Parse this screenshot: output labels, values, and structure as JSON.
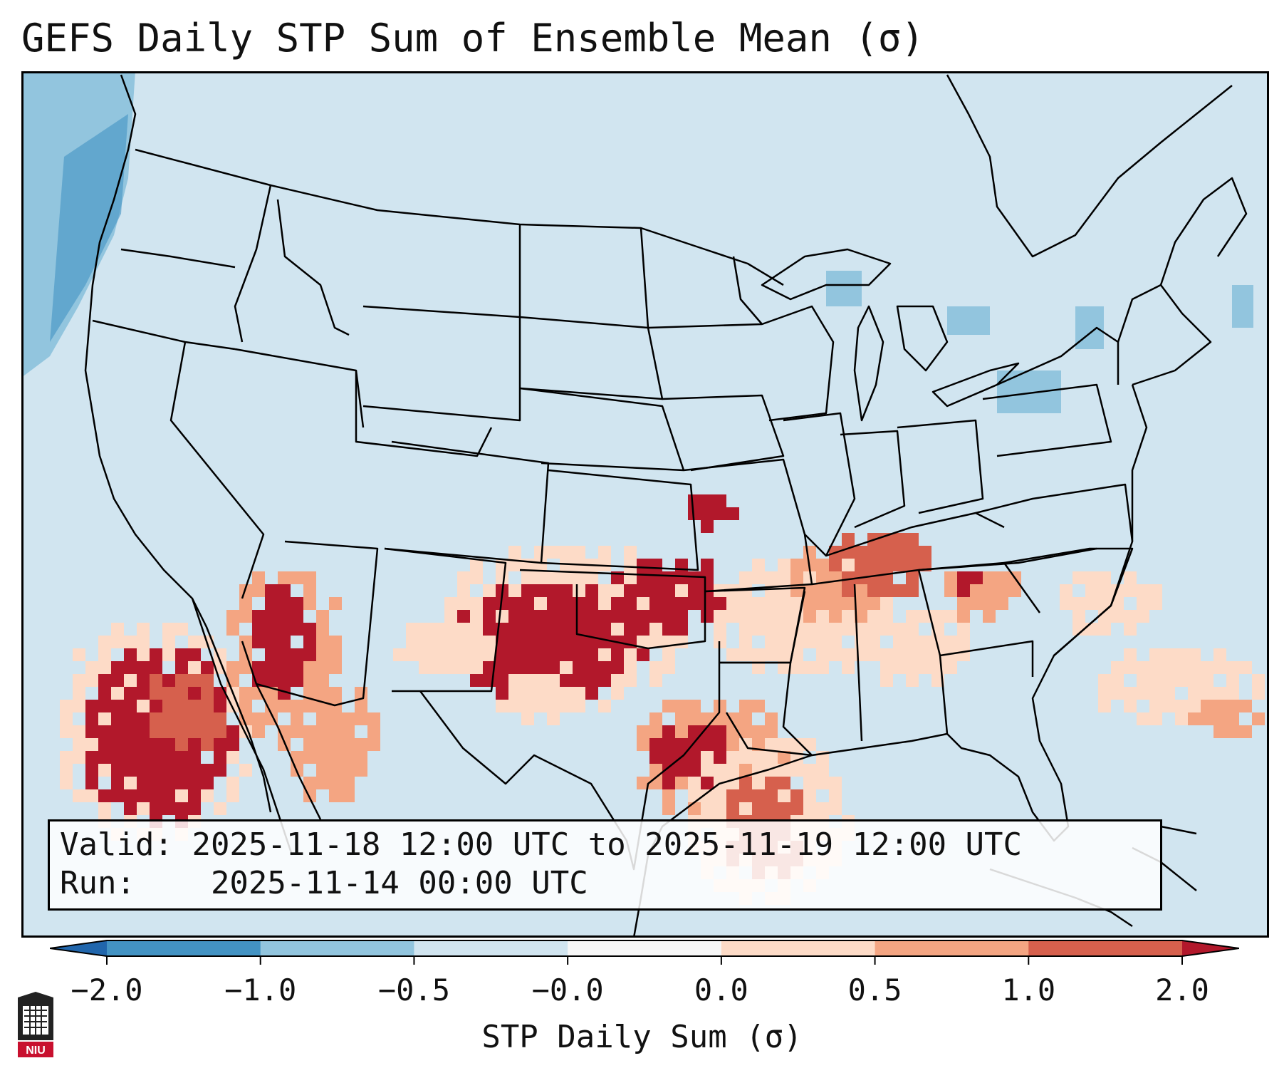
{
  "title": "GEFS Daily STP Sum of Ensemble Mean (σ)",
  "info": {
    "valid_label": "Valid:",
    "valid_value": "2025-11-18 12:00 UTC to 2025-11-19 12:00 UTC",
    "run_label": "Run:",
    "run_value": "2025-11-14 00:00 UTC"
  },
  "colorbar": {
    "label": "STP Daily Sum (σ)",
    "ticks": [
      "−2.0",
      "−1.0",
      "−0.5",
      "−0.0",
      "0.0",
      "0.5",
      "1.0",
      "2.0"
    ],
    "bins": [
      {
        "range": "< -2.0",
        "color": "#2166ac"
      },
      {
        "range": "-2.0 to -1.0",
        "color": "#4393c3"
      },
      {
        "range": "-1.0 to -0.5",
        "color": "#92c5de"
      },
      {
        "range": "-0.5 to -0.0",
        "color": "#d1e5f0"
      },
      {
        "range": "-0.0 to 0.0",
        "color": "#f7f7f7"
      },
      {
        "range": "0.0 to 0.5",
        "color": "#fddbc7"
      },
      {
        "range": "0.5 to 1.0",
        "color": "#f4a582"
      },
      {
        "range": "1.0 to 2.0",
        "color": "#d6604d"
      },
      {
        "range": "> 2.0",
        "color": "#b2182b"
      }
    ]
  },
  "map": {
    "background_color": "#d1e5f0",
    "boundary_color": "#000000"
  },
  "logo": {
    "text": "NIU",
    "color": "#c8102e"
  }
}
